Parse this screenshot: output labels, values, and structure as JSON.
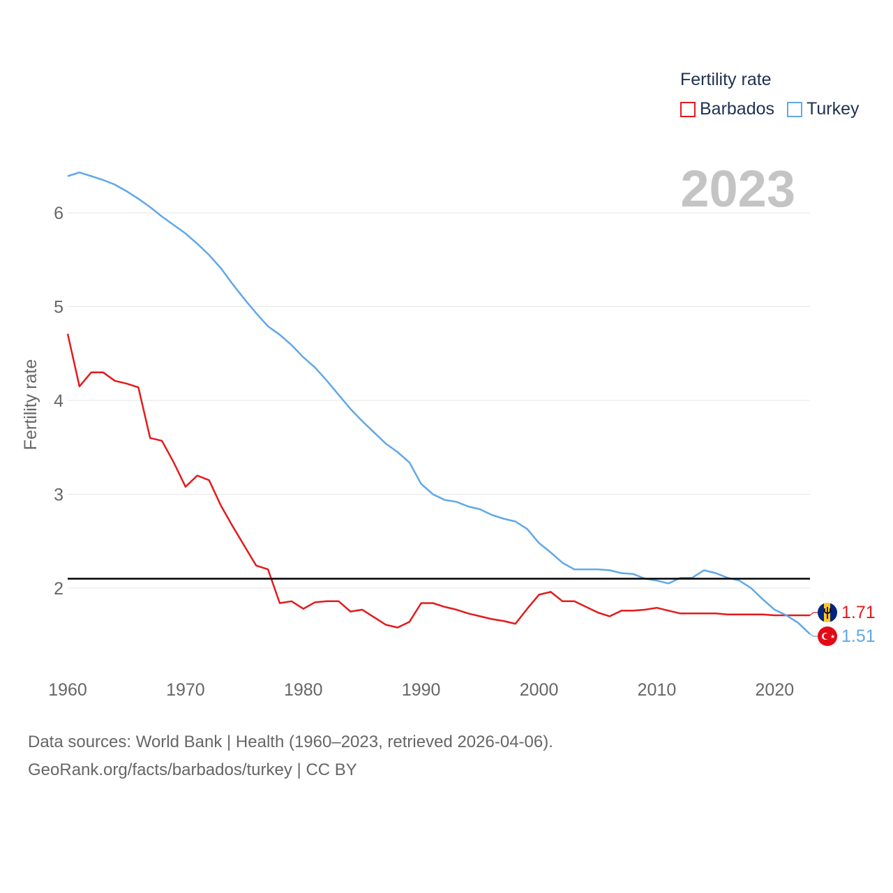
{
  "colors": {
    "barbados": "#e41a1c",
    "turkey": "#5fa8e8",
    "reference": "#000000",
    "grid": "#e6e6e6",
    "axis_text": "#666666"
  },
  "legend": {
    "title": "Fertility rate",
    "items": [
      {
        "name": "Barbados"
      },
      {
        "name": "Turkey"
      }
    ]
  },
  "year_label": "2023",
  "source": {
    "line1": "Data sources: World Bank | Health (1960–2023, retrieved 2026-04-06).",
    "line2": "GeoRank.org/facts/barbados/turkey | CC BY"
  },
  "end_labels": {
    "barbados": "1.71",
    "turkey": "1.51"
  },
  "chart_data": {
    "type": "line",
    "title": "Fertility rate",
    "xlabel": "",
    "ylabel": "Fertility rate",
    "xlim": [
      1960,
      2023
    ],
    "ylim": [
      1.1,
      6.6
    ],
    "x_ticks": [
      1960,
      1970,
      1980,
      1990,
      2000,
      2010,
      2020
    ],
    "y_ticks": [
      2,
      3,
      4,
      5,
      6
    ],
    "reference_line": {
      "y": 2.1
    },
    "x": [
      1960,
      1961,
      1962,
      1963,
      1964,
      1965,
      1966,
      1967,
      1968,
      1969,
      1970,
      1971,
      1972,
      1973,
      1974,
      1975,
      1976,
      1977,
      1978,
      1979,
      1980,
      1981,
      1982,
      1983,
      1984,
      1985,
      1986,
      1987,
      1988,
      1989,
      1990,
      1991,
      1992,
      1993,
      1994,
      1995,
      1996,
      1997,
      1998,
      1999,
      2000,
      2001,
      2002,
      2003,
      2004,
      2005,
      2006,
      2007,
      2008,
      2009,
      2010,
      2011,
      2012,
      2013,
      2014,
      2015,
      2016,
      2017,
      2018,
      2019,
      2020,
      2021,
      2022,
      2023
    ],
    "series": [
      {
        "name": "Barbados",
        "values": [
          4.71,
          4.15,
          4.3,
          4.3,
          4.21,
          4.18,
          4.14,
          3.6,
          3.57,
          3.34,
          3.08,
          3.2,
          3.15,
          2.88,
          2.66,
          2.45,
          2.24,
          2.2,
          1.84,
          1.86,
          1.78,
          1.85,
          1.86,
          1.86,
          1.75,
          1.77,
          1.69,
          1.61,
          1.58,
          1.64,
          1.84,
          1.84,
          1.8,
          1.77,
          1.73,
          1.7,
          1.67,
          1.65,
          1.62,
          1.78,
          1.93,
          1.96,
          1.86,
          1.86,
          1.8,
          1.74,
          1.7,
          1.76,
          1.76,
          1.77,
          1.79,
          1.76,
          1.73,
          1.73,
          1.73,
          1.73,
          1.72,
          1.72,
          1.72,
          1.72,
          1.71,
          1.71,
          1.71,
          1.71
        ]
      },
      {
        "name": "Turkey",
        "values": [
          6.39,
          6.43,
          6.39,
          6.35,
          6.3,
          6.23,
          6.15,
          6.06,
          5.96,
          5.87,
          5.78,
          5.67,
          5.55,
          5.41,
          5.24,
          5.08,
          4.93,
          4.79,
          4.7,
          4.59,
          4.46,
          4.35,
          4.21,
          4.06,
          3.91,
          3.78,
          3.66,
          3.54,
          3.45,
          3.34,
          3.11,
          3.0,
          2.94,
          2.92,
          2.87,
          2.84,
          2.78,
          2.74,
          2.71,
          2.63,
          2.48,
          2.38,
          2.27,
          2.2,
          2.2,
          2.2,
          2.19,
          2.16,
          2.15,
          2.1,
          2.08,
          2.05,
          2.11,
          2.11,
          2.19,
          2.16,
          2.11,
          2.08,
          2.0,
          1.88,
          1.77,
          1.71,
          1.63,
          1.51
        ]
      }
    ]
  }
}
